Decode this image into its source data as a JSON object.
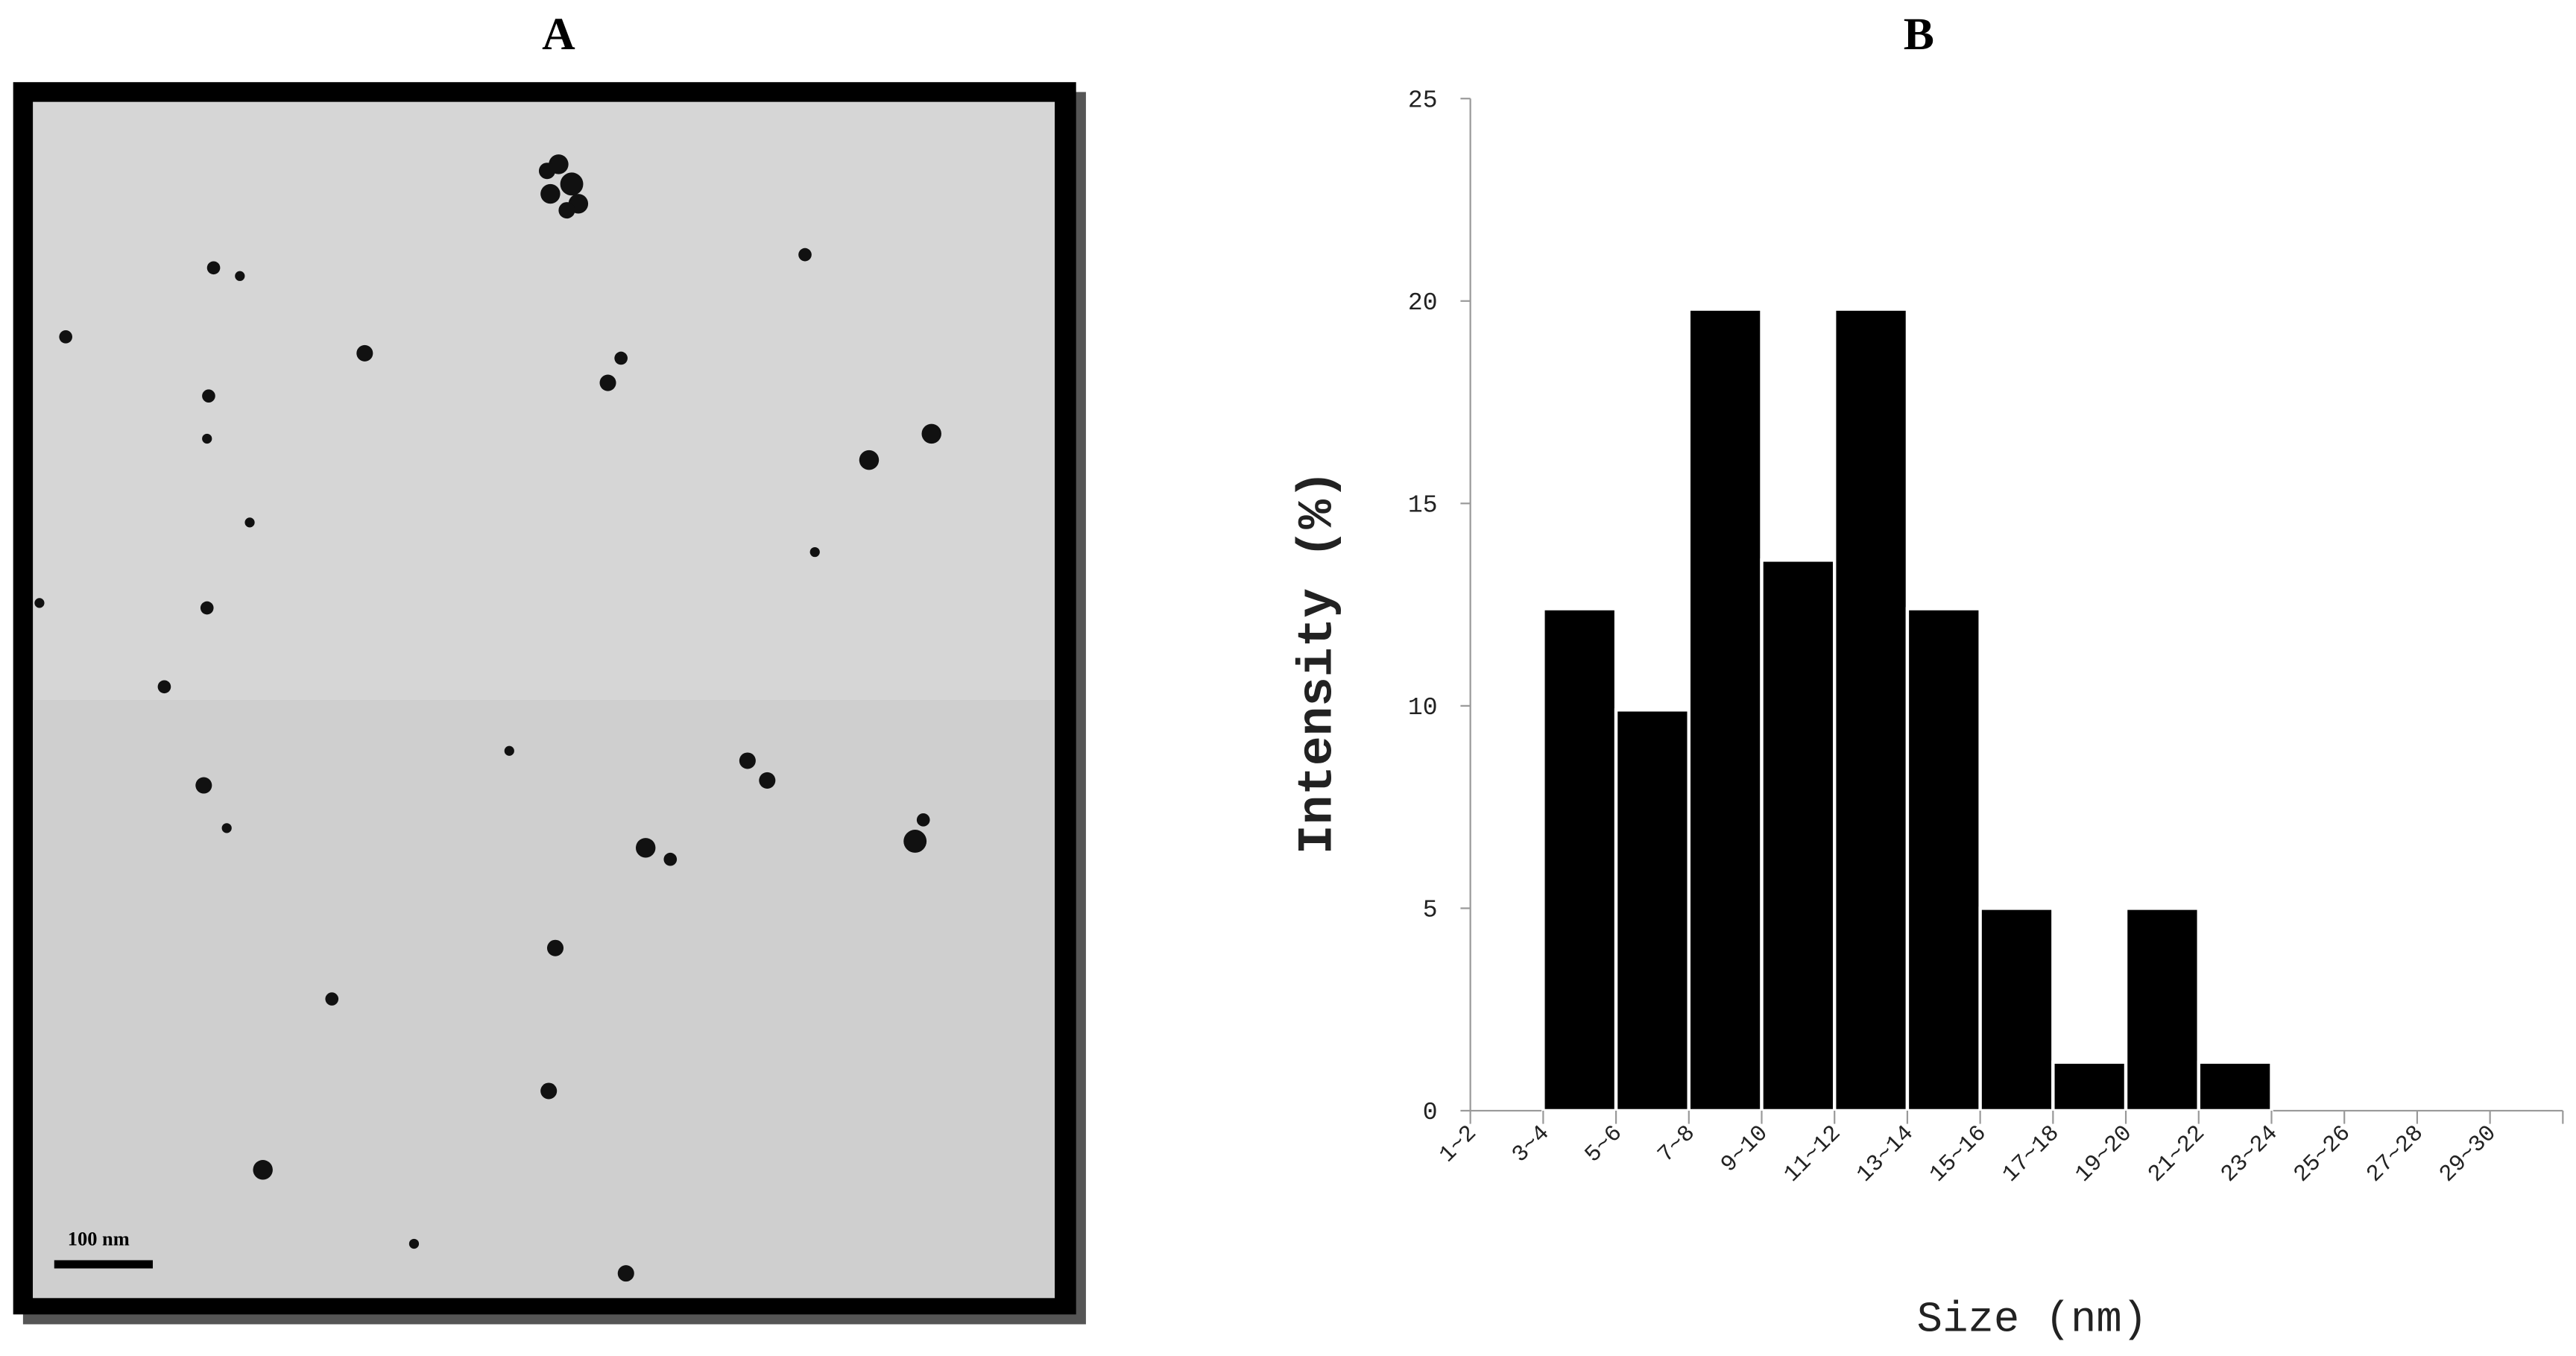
{
  "image_panel": {
    "label": "A",
    "scale_bar": "100 nm"
  },
  "chart_data": {
    "type": "bar",
    "title": "B",
    "xlabel": "Size (nm)",
    "ylabel": "Intensity (%)",
    "categories": [
      "1~2",
      "3~4",
      "5~6",
      "7~8",
      "9~10",
      "11~12",
      "13~14",
      "15~16",
      "17~18",
      "19~20",
      "21~22",
      "23~24",
      "25~26",
      "27~28",
      "29~30"
    ],
    "values": [
      0,
      12.4,
      9.9,
      19.8,
      13.6,
      19.8,
      12.4,
      5,
      1.2,
      5,
      1.2,
      0,
      0,
      0,
      0
    ],
    "color": "#000000",
    "ylim": [
      0,
      25
    ],
    "yticks": [
      0,
      5,
      10,
      15,
      20,
      25
    ],
    "grid": false
  }
}
